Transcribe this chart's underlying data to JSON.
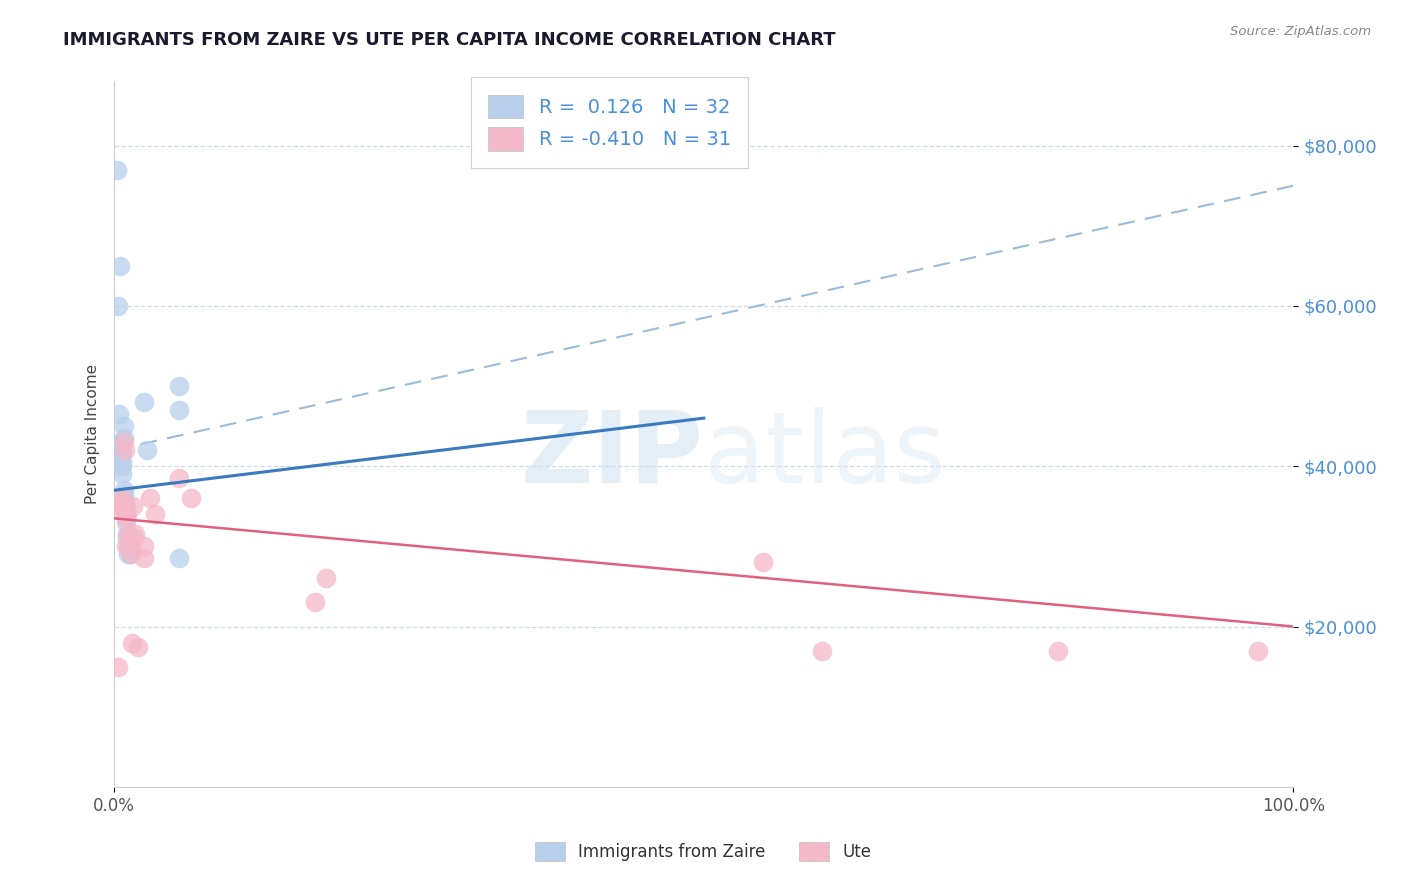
{
  "title": "IMMIGRANTS FROM ZAIRE VS UTE PER CAPITA INCOME CORRELATION CHART",
  "source": "Source: ZipAtlas.com",
  "ylabel": "Per Capita Income",
  "xlim": [
    0,
    1.0
  ],
  "ylim": [
    0,
    88000
  ],
  "ytick_values": [
    20000,
    40000,
    60000,
    80000
  ],
  "ytick_labels": [
    "$20,000",
    "$40,000",
    "$60,000",
    "$80,000"
  ],
  "watermark": "ZIPatlas",
  "legend_entries": [
    {
      "label": "Immigrants from Zaire",
      "color": "#b8d0eb",
      "R": 0.126,
      "N": 32
    },
    {
      "label": "Ute",
      "color": "#f5b8c8",
      "R": -0.41,
      "N": 31
    }
  ],
  "blue_color": "#4a90d9",
  "pink_color": "#e8607a",
  "scatter_blue": "#b8d0eb",
  "scatter_pink": "#f5b8c8",
  "trendline_blue_color": "#3a7abf",
  "trendline_pink_color": "#e06080",
  "trendline_dashed_color": "#9abcd8",
  "blue_points_x": [
    0.002,
    0.005,
    0.003,
    0.004,
    0.008,
    0.008,
    0.006,
    0.006,
    0.007,
    0.007,
    0.007,
    0.008,
    0.008,
    0.009,
    0.009,
    0.01,
    0.01,
    0.011,
    0.011,
    0.012,
    0.013,
    0.025,
    0.028,
    0.055,
    0.055,
    0.055,
    0.007,
    0.008,
    0.009,
    0.01,
    0.012,
    0.014
  ],
  "blue_points_y": [
    77000,
    65000,
    60000,
    46500,
    45000,
    43500,
    43000,
    42000,
    41500,
    40500,
    40000,
    37000,
    36500,
    35500,
    35000,
    34500,
    34000,
    31500,
    31000,
    29000,
    29000,
    48000,
    42000,
    50000,
    47000,
    28500,
    39000,
    36000,
    34500,
    33000,
    30000,
    29500
  ],
  "pink_points_x": [
    0.003,
    0.006,
    0.007,
    0.008,
    0.009,
    0.009,
    0.01,
    0.011,
    0.012,
    0.013,
    0.014,
    0.015,
    0.016,
    0.017,
    0.018,
    0.02,
    0.025,
    0.025,
    0.03,
    0.035,
    0.055,
    0.065,
    0.17,
    0.18,
    0.55,
    0.6,
    0.8,
    0.97,
    0.005,
    0.007,
    0.01
  ],
  "pink_points_y": [
    15000,
    35000,
    36000,
    43000,
    42000,
    35000,
    30000,
    34000,
    31500,
    30500,
    29000,
    18000,
    35000,
    31000,
    31500,
    17500,
    30000,
    28500,
    36000,
    34000,
    38500,
    36000,
    23000,
    26000,
    28000,
    17000,
    17000,
    17000,
    34500,
    35500,
    33500
  ],
  "blue_trend_x0": 0.0,
  "blue_trend_x1": 0.5,
  "blue_trend_y0": 37000,
  "blue_trend_y1": 46000,
  "pink_trend_x0": 0.0,
  "pink_trend_x1": 1.0,
  "pink_trend_y0": 33500,
  "pink_trend_y1": 20000,
  "dashed_trend_x0": 0.0,
  "dashed_trend_x1": 1.0,
  "dashed_trend_y0": 42000,
  "dashed_trend_y1": 75000
}
